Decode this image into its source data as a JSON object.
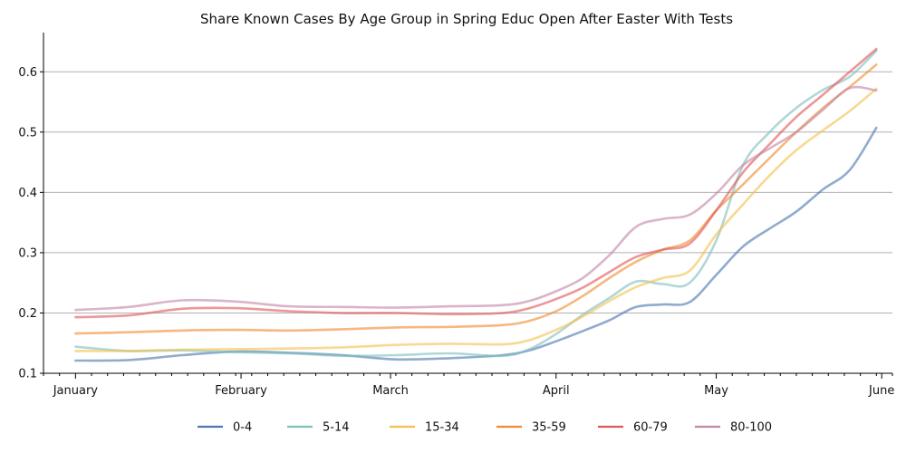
{
  "chart_data": {
    "type": "line",
    "title": "Share Known Cases By Age Group in Spring Educ Open After Easter With Tests",
    "xlabel": "",
    "ylabel": "",
    "x_ticks": [
      "January",
      "February",
      "March",
      "April",
      "May",
      "June"
    ],
    "y_ticks": [
      "0.1",
      "0.2",
      "0.3",
      "0.4",
      "0.5",
      "0.6"
    ],
    "ylim": [
      0.1,
      0.665
    ],
    "xlim": [
      -6,
      153
    ],
    "grid": "horizontal",
    "legend_position": "bottom-center",
    "x": [
      0,
      10,
      20,
      30,
      40,
      50,
      60,
      70,
      80,
      85,
      90,
      95,
      100,
      105,
      110,
      115,
      120,
      125,
      130,
      135,
      140,
      145,
      150
    ],
    "series": [
      {
        "name": "0-4",
        "color": "#4c78b0",
        "values": [
          0.121,
          0.122,
          0.13,
          0.136,
          0.134,
          0.13,
          0.123,
          0.125,
          0.13,
          0.138,
          0.153,
          0.17,
          0.188,
          0.21,
          0.214,
          0.218,
          0.263,
          0.31,
          0.34,
          0.368,
          0.405,
          0.437,
          0.507
        ]
      },
      {
        "name": "5-14",
        "color": "#7fbfbd",
        "values": [
          0.144,
          0.137,
          0.138,
          0.135,
          0.133,
          0.129,
          0.13,
          0.133,
          0.129,
          0.14,
          0.165,
          0.197,
          0.225,
          0.252,
          0.248,
          0.25,
          0.32,
          0.445,
          0.5,
          0.54,
          0.57,
          0.592,
          0.635
        ]
      },
      {
        "name": "15-34",
        "color": "#f2c14e",
        "values": [
          0.137,
          0.137,
          0.139,
          0.14,
          0.141,
          0.143,
          0.147,
          0.149,
          0.148,
          0.155,
          0.172,
          0.194,
          0.22,
          0.243,
          0.258,
          0.27,
          0.33,
          0.38,
          0.428,
          0.47,
          0.503,
          0.535,
          0.572
        ]
      },
      {
        "name": "35-59",
        "color": "#ef8c2f",
        "values": [
          0.166,
          0.168,
          0.171,
          0.172,
          0.171,
          0.173,
          0.176,
          0.177,
          0.18,
          0.187,
          0.203,
          0.228,
          0.258,
          0.285,
          0.305,
          0.32,
          0.37,
          0.413,
          0.457,
          0.5,
          0.54,
          0.575,
          0.612
        ]
      },
      {
        "name": "60-79",
        "color": "#e15759",
        "values": [
          0.193,
          0.196,
          0.207,
          0.208,
          0.203,
          0.2,
          0.2,
          0.198,
          0.2,
          0.208,
          0.223,
          0.242,
          0.268,
          0.293,
          0.305,
          0.315,
          0.37,
          0.433,
          0.48,
          0.525,
          0.562,
          0.6,
          0.638
        ]
      },
      {
        "name": "80-100",
        "color": "#c486a8",
        "values": [
          0.205,
          0.21,
          0.221,
          0.219,
          0.211,
          0.21,
          0.209,
          0.211,
          0.213,
          0.22,
          0.236,
          0.258,
          0.296,
          0.343,
          0.356,
          0.363,
          0.398,
          0.445,
          0.473,
          0.5,
          0.537,
          0.573,
          0.569
        ]
      }
    ]
  }
}
